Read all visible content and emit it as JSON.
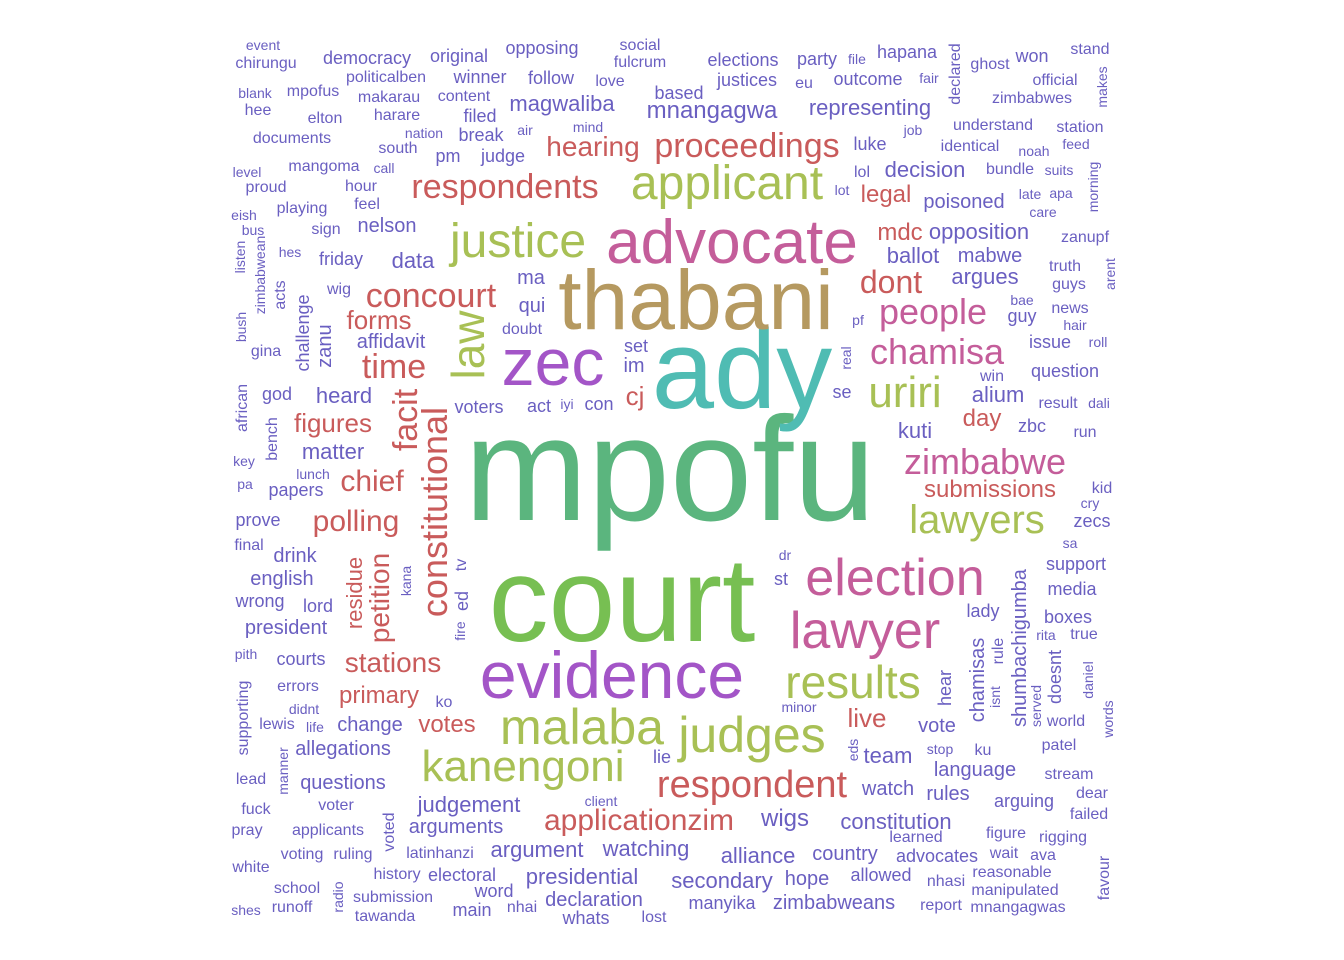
{
  "words": [
    {
      "text": "mpofu",
      "color": "#5bb57e"
    },
    {
      "text": "court",
      "color": "#77bf52"
    },
    {
      "text": "ady",
      "color": "#4fbcb3"
    },
    {
      "text": "thabani",
      "color": "#b59960"
    },
    {
      "text": "zec",
      "color": "#a355c7"
    },
    {
      "text": "advocate",
      "color": "#c45d9a"
    },
    {
      "text": "evidence",
      "color": "#a355c7"
    },
    {
      "text": "justice",
      "color": "#a8c055"
    },
    {
      "text": "applicant",
      "color": "#a8c055"
    },
    {
      "text": "malaba",
      "color": "#a8c055"
    },
    {
      "text": "judges",
      "color": "#a8c055"
    },
    {
      "text": "kanengoni",
      "color": "#a8c055"
    },
    {
      "text": "election",
      "color": "#c45d9a"
    },
    {
      "text": "lawyer",
      "color": "#c45d9a"
    },
    {
      "text": "results",
      "color": "#a8c055"
    },
    {
      "text": "uriri",
      "color": "#a8c055"
    },
    {
      "text": "lawyers",
      "color": "#a8c055"
    },
    {
      "text": "law",
      "color": "#a8c055"
    },
    {
      "text": "constitutional",
      "color": "#c95b5b"
    },
    {
      "text": "respondent",
      "color": "#c95b5b"
    },
    {
      "text": "zimbabwe",
      "color": "#c45d9a"
    },
    {
      "text": "chamisa",
      "color": "#c45d9a"
    },
    {
      "text": "people",
      "color": "#c45d9a"
    },
    {
      "text": "proceedings",
      "color": "#c95b5b"
    },
    {
      "text": "respondents",
      "color": "#c95b5b"
    },
    {
      "text": "concourt",
      "color": "#c95b5b"
    },
    {
      "text": "facit",
      "color": "#c95b5b"
    },
    {
      "text": "time",
      "color": "#c95b5b"
    },
    {
      "text": "dont",
      "color": "#c95b5b"
    },
    {
      "text": "applicationzim",
      "color": "#c95b5b"
    },
    {
      "text": "polling",
      "color": "#c95b5b"
    },
    {
      "text": "chief",
      "color": "#c95b5b"
    },
    {
      "text": "hearing",
      "color": "#c95b5b"
    },
    {
      "text": "stations",
      "color": "#c95b5b"
    },
    {
      "text": "petition",
      "color": "#c95b5b"
    },
    {
      "text": "submissions",
      "color": "#c95b5b"
    },
    {
      "text": "forms",
      "color": "#c95b5b"
    },
    {
      "text": "live",
      "color": "#c95b5b"
    },
    {
      "text": "figures",
      "color": "#c95b5b"
    },
    {
      "text": "primary",
      "color": "#c95b5b"
    },
    {
      "text": "votes",
      "color": "#c95b5b"
    },
    {
      "text": "day",
      "color": "#c95b5b"
    },
    {
      "text": "cj",
      "color": "#c95b5b"
    },
    {
      "text": "legal",
      "color": "#c95b5b"
    },
    {
      "text": "mdc",
      "color": "#c95b5b"
    },
    {
      "text": "residue",
      "color": "#c95b5b"
    },
    {
      "text": "mnangagwa",
      "color": "#6a5fc1"
    },
    {
      "text": "magwaliba",
      "color": "#6a5fc1"
    },
    {
      "text": "wigs",
      "color": "#6a5fc1"
    },
    {
      "text": "watching",
      "color": "#6a5fc1"
    },
    {
      "text": "alliance",
      "color": "#6a5fc1"
    },
    {
      "text": "secondary",
      "color": "#6a5fc1"
    },
    {
      "text": "presidential",
      "color": "#6a5fc1"
    },
    {
      "text": "argument",
      "color": "#6a5fc1"
    },
    {
      "text": "arguments",
      "color": "#6a5fc1"
    },
    {
      "text": "judgement",
      "color": "#6a5fc1"
    },
    {
      "text": "shumbachigumba",
      "color": "#6a5fc1"
    },
    {
      "text": "chamisas",
      "color": "#6a5fc1"
    },
    {
      "text": "opposition",
      "color": "#6a5fc1"
    },
    {
      "text": "ballot",
      "color": "#6a5fc1"
    },
    {
      "text": "argues",
      "color": "#6a5fc1"
    },
    {
      "text": "mabwe",
      "color": "#6a5fc1"
    },
    {
      "text": "representing",
      "color": "#6a5fc1"
    },
    {
      "text": "decision",
      "color": "#6a5fc1"
    },
    {
      "text": "poisoned",
      "color": "#6a5fc1"
    },
    {
      "text": "kuti",
      "color": "#6a5fc1"
    },
    {
      "text": "alium",
      "color": "#6a5fc1"
    },
    {
      "text": "heard",
      "color": "#6a5fc1"
    },
    {
      "text": "matter",
      "color": "#6a5fc1"
    },
    {
      "text": "data",
      "color": "#6a5fc1"
    },
    {
      "text": "nelson",
      "color": "#6a5fc1"
    },
    {
      "text": "affidavit",
      "color": "#6a5fc1"
    },
    {
      "text": "constitution",
      "color": "#6a5fc1"
    },
    {
      "text": "team",
      "color": "#6a5fc1"
    },
    {
      "text": "watch",
      "color": "#6a5fc1"
    },
    {
      "text": "language",
      "color": "#6a5fc1"
    },
    {
      "text": "rules",
      "color": "#6a5fc1"
    },
    {
      "text": "country",
      "color": "#6a5fc1"
    },
    {
      "text": "advocates",
      "color": "#6a5fc1"
    },
    {
      "text": "declaration",
      "color": "#6a5fc1"
    },
    {
      "text": "zimbabweans",
      "color": "#6a5fc1"
    },
    {
      "text": "manyika",
      "color": "#6a5fc1"
    },
    {
      "text": "hope",
      "color": "#6a5fc1"
    },
    {
      "text": "allowed",
      "color": "#6a5fc1"
    },
    {
      "text": "whats",
      "color": "#6a5fc1"
    },
    {
      "text": "lost",
      "color": "#6a5fc1"
    },
    {
      "text": "main",
      "color": "#6a5fc1"
    },
    {
      "text": "nhai",
      "color": "#6a5fc1"
    },
    {
      "text": "word",
      "color": "#6a5fc1"
    },
    {
      "text": "electoral",
      "color": "#6a5fc1"
    },
    {
      "text": "latinhanzi",
      "color": "#6a5fc1"
    },
    {
      "text": "history",
      "color": "#6a5fc1"
    },
    {
      "text": "submission",
      "color": "#6a5fc1"
    },
    {
      "text": "tawanda",
      "color": "#6a5fc1"
    },
    {
      "text": "radio",
      "color": "#6a5fc1"
    },
    {
      "text": "voted",
      "color": "#6a5fc1"
    },
    {
      "text": "ruling",
      "color": "#6a5fc1"
    },
    {
      "text": "voting",
      "color": "#6a5fc1"
    },
    {
      "text": "applicants",
      "color": "#6a5fc1"
    },
    {
      "text": "voter",
      "color": "#6a5fc1"
    },
    {
      "text": "questions",
      "color": "#6a5fc1"
    },
    {
      "text": "allegations",
      "color": "#6a5fc1"
    },
    {
      "text": "change",
      "color": "#6a5fc1"
    },
    {
      "text": "lewis",
      "color": "#6a5fc1"
    },
    {
      "text": "life",
      "color": "#6a5fc1"
    },
    {
      "text": "didnt",
      "color": "#6a5fc1"
    },
    {
      "text": "errors",
      "color": "#6a5fc1"
    },
    {
      "text": "courts",
      "color": "#6a5fc1"
    },
    {
      "text": "president",
      "color": "#6a5fc1"
    },
    {
      "text": "lord",
      "color": "#6a5fc1"
    },
    {
      "text": "wrong",
      "color": "#6a5fc1"
    },
    {
      "text": "english",
      "color": "#6a5fc1"
    },
    {
      "text": "drink",
      "color": "#6a5fc1"
    },
    {
      "text": "prove",
      "color": "#6a5fc1"
    },
    {
      "text": "papers",
      "color": "#6a5fc1"
    },
    {
      "text": "lunch",
      "color": "#6a5fc1"
    },
    {
      "text": "god",
      "color": "#6a5fc1"
    },
    {
      "text": "bench",
      "color": "#6a5fc1"
    },
    {
      "text": "zanu",
      "color": "#6a5fc1"
    },
    {
      "text": "challenge",
      "color": "#6a5fc1"
    },
    {
      "text": "acts",
      "color": "#6a5fc1"
    },
    {
      "text": "zimbabwean",
      "color": "#6a5fc1"
    },
    {
      "text": "gina",
      "color": "#6a5fc1"
    },
    {
      "text": "bush",
      "color": "#6a5fc1"
    },
    {
      "text": "listen",
      "color": "#6a5fc1"
    },
    {
      "text": "african",
      "color": "#6a5fc1"
    },
    {
      "text": "key",
      "color": "#6a5fc1"
    },
    {
      "text": "pa",
      "color": "#6a5fc1"
    },
    {
      "text": "final",
      "color": "#6a5fc1"
    },
    {
      "text": "pith",
      "color": "#6a5fc1"
    },
    {
      "text": "supporting",
      "color": "#6a5fc1"
    },
    {
      "text": "lead",
      "color": "#6a5fc1"
    },
    {
      "text": "fuck",
      "color": "#6a5fc1"
    },
    {
      "text": "pray",
      "color": "#6a5fc1"
    },
    {
      "text": "white",
      "color": "#6a5fc1"
    },
    {
      "text": "shes",
      "color": "#6a5fc1"
    },
    {
      "text": "runoff",
      "color": "#6a5fc1"
    },
    {
      "text": "school",
      "color": "#6a5fc1"
    },
    {
      "text": "manner",
      "color": "#6a5fc1"
    },
    {
      "text": "event",
      "color": "#6a5fc1"
    },
    {
      "text": "chirungu",
      "color": "#6a5fc1"
    },
    {
      "text": "democracy",
      "color": "#6a5fc1"
    },
    {
      "text": "original",
      "color": "#6a5fc1"
    },
    {
      "text": "opposing",
      "color": "#6a5fc1"
    },
    {
      "text": "social",
      "color": "#6a5fc1"
    },
    {
      "text": "fulcrum",
      "color": "#6a5fc1"
    },
    {
      "text": "elections",
      "color": "#6a5fc1"
    },
    {
      "text": "party",
      "color": "#6a5fc1"
    },
    {
      "text": "file",
      "color": "#6a5fc1"
    },
    {
      "text": "hapana",
      "color": "#6a5fc1"
    },
    {
      "text": "declared",
      "color": "#6a5fc1"
    },
    {
      "text": "ghost",
      "color": "#6a5fc1"
    },
    {
      "text": "won",
      "color": "#6a5fc1"
    },
    {
      "text": "stand",
      "color": "#6a5fc1"
    },
    {
      "text": "makes",
      "color": "#6a5fc1"
    },
    {
      "text": "official",
      "color": "#6a5fc1"
    },
    {
      "text": "fair",
      "color": "#6a5fc1"
    },
    {
      "text": "outcome",
      "color": "#6a5fc1"
    },
    {
      "text": "eu",
      "color": "#6a5fc1"
    },
    {
      "text": "justices",
      "color": "#6a5fc1"
    },
    {
      "text": "love",
      "color": "#6a5fc1"
    },
    {
      "text": "follow",
      "color": "#6a5fc1"
    },
    {
      "text": "winner",
      "color": "#6a5fc1"
    },
    {
      "text": "politicalben",
      "color": "#6a5fc1"
    },
    {
      "text": "blank",
      "color": "#6a5fc1"
    },
    {
      "text": "mpofus",
      "color": "#6a5fc1"
    },
    {
      "text": "makarau",
      "color": "#6a5fc1"
    },
    {
      "text": "content",
      "color": "#6a5fc1"
    },
    {
      "text": "based",
      "color": "#6a5fc1"
    },
    {
      "text": "zimbabwes",
      "color": "#6a5fc1"
    },
    {
      "text": "hee",
      "color": "#6a5fc1"
    },
    {
      "text": "elton",
      "color": "#6a5fc1"
    },
    {
      "text": "harare",
      "color": "#6a5fc1"
    },
    {
      "text": "filed",
      "color": "#6a5fc1"
    },
    {
      "text": "understand",
      "color": "#6a5fc1"
    },
    {
      "text": "station",
      "color": "#6a5fc1"
    },
    {
      "text": "documents",
      "color": "#6a5fc1"
    },
    {
      "text": "nation",
      "color": "#6a5fc1"
    },
    {
      "text": "break",
      "color": "#6a5fc1"
    },
    {
      "text": "air",
      "color": "#6a5fc1"
    },
    {
      "text": "mind",
      "color": "#6a5fc1"
    },
    {
      "text": "job",
      "color": "#6a5fc1"
    },
    {
      "text": "feed",
      "color": "#6a5fc1"
    },
    {
      "text": "luke",
      "color": "#6a5fc1"
    },
    {
      "text": "identical",
      "color": "#6a5fc1"
    },
    {
      "text": "noah",
      "color": "#6a5fc1"
    },
    {
      "text": "level",
      "color": "#6a5fc1"
    },
    {
      "text": "mangoma",
      "color": "#6a5fc1"
    },
    {
      "text": "south",
      "color": "#6a5fc1"
    },
    {
      "text": "call",
      "color": "#6a5fc1"
    },
    {
      "text": "pm",
      "color": "#6a5fc1"
    },
    {
      "text": "judge",
      "color": "#6a5fc1"
    },
    {
      "text": "morning",
      "color": "#6a5fc1"
    },
    {
      "text": "bundle",
      "color": "#6a5fc1"
    },
    {
      "text": "suits",
      "color": "#6a5fc1"
    },
    {
      "text": "proud",
      "color": "#6a5fc1"
    },
    {
      "text": "hour",
      "color": "#6a5fc1"
    },
    {
      "text": "lol",
      "color": "#6a5fc1"
    },
    {
      "text": "lot",
      "color": "#6a5fc1"
    },
    {
      "text": "late",
      "color": "#6a5fc1"
    },
    {
      "text": "apa",
      "color": "#6a5fc1"
    },
    {
      "text": "care",
      "color": "#6a5fc1"
    },
    {
      "text": "eish",
      "color": "#6a5fc1"
    },
    {
      "text": "playing",
      "color": "#6a5fc1"
    },
    {
      "text": "feel",
      "color": "#6a5fc1"
    },
    {
      "text": "bus",
      "color": "#6a5fc1"
    },
    {
      "text": "sign",
      "color": "#6a5fc1"
    },
    {
      "text": "hes",
      "color": "#6a5fc1"
    },
    {
      "text": "friday",
      "color": "#6a5fc1"
    },
    {
      "text": "zanupf",
      "color": "#6a5fc1"
    },
    {
      "text": "truth",
      "color": "#6a5fc1"
    },
    {
      "text": "arent",
      "color": "#6a5fc1"
    },
    {
      "text": "guys",
      "color": "#6a5fc1"
    },
    {
      "text": "wig",
      "color": "#6a5fc1"
    },
    {
      "text": "ma",
      "color": "#6a5fc1"
    },
    {
      "text": "qui",
      "color": "#6a5fc1"
    },
    {
      "text": "doubt",
      "color": "#6a5fc1"
    },
    {
      "text": "pf",
      "color": "#6a5fc1"
    },
    {
      "text": "guy",
      "color": "#6a5fc1"
    },
    {
      "text": "bae",
      "color": "#6a5fc1"
    },
    {
      "text": "news",
      "color": "#6a5fc1"
    },
    {
      "text": "hair",
      "color": "#6a5fc1"
    },
    {
      "text": "issue",
      "color": "#6a5fc1"
    },
    {
      "text": "roll",
      "color": "#6a5fc1"
    },
    {
      "text": "real",
      "color": "#6a5fc1"
    },
    {
      "text": "set",
      "color": "#6a5fc1"
    },
    {
      "text": "im",
      "color": "#6a5fc1"
    },
    {
      "text": "question",
      "color": "#6a5fc1"
    },
    {
      "text": "win",
      "color": "#6a5fc1"
    },
    {
      "text": "se",
      "color": "#6a5fc1"
    },
    {
      "text": "result",
      "color": "#6a5fc1"
    },
    {
      "text": "dali",
      "color": "#6a5fc1"
    },
    {
      "text": "voters",
      "color": "#6a5fc1"
    },
    {
      "text": "act",
      "color": "#6a5fc1"
    },
    {
      "text": "iyi",
      "color": "#6a5fc1"
    },
    {
      "text": "con",
      "color": "#6a5fc1"
    },
    {
      "text": "zbc",
      "color": "#6a5fc1"
    },
    {
      "text": "run",
      "color": "#6a5fc1"
    },
    {
      "text": "kid",
      "color": "#6a5fc1"
    },
    {
      "text": "cry",
      "color": "#6a5fc1"
    },
    {
      "text": "zecs",
      "color": "#6a5fc1"
    },
    {
      "text": "sa",
      "color": "#6a5fc1"
    },
    {
      "text": "support",
      "color": "#6a5fc1"
    },
    {
      "text": "media",
      "color": "#6a5fc1"
    },
    {
      "text": "boxes",
      "color": "#6a5fc1"
    },
    {
      "text": "rita",
      "color": "#6a5fc1"
    },
    {
      "text": "true",
      "color": "#6a5fc1"
    },
    {
      "text": "doesnt",
      "color": "#6a5fc1"
    },
    {
      "text": "daniel",
      "color": "#6a5fc1"
    },
    {
      "text": "rule",
      "color": "#6a5fc1"
    },
    {
      "text": "lady",
      "color": "#6a5fc1"
    },
    {
      "text": "isnt",
      "color": "#6a5fc1"
    },
    {
      "text": "served",
      "color": "#6a5fc1"
    },
    {
      "text": "world",
      "color": "#6a5fc1"
    },
    {
      "text": "words",
      "color": "#6a5fc1"
    },
    {
      "text": "patel",
      "color": "#6a5fc1"
    },
    {
      "text": "ku",
      "color": "#6a5fc1"
    },
    {
      "text": "stream",
      "color": "#6a5fc1"
    },
    {
      "text": "dear",
      "color": "#6a5fc1"
    },
    {
      "text": "failed",
      "color": "#6a5fc1"
    },
    {
      "text": "arguing",
      "color": "#6a5fc1"
    },
    {
      "text": "rigging",
      "color": "#6a5fc1"
    },
    {
      "text": "figure",
      "color": "#6a5fc1"
    },
    {
      "text": "wait",
      "color": "#6a5fc1"
    },
    {
      "text": "ava",
      "color": "#6a5fc1"
    },
    {
      "text": "favour",
      "color": "#6a5fc1"
    },
    {
      "text": "reasonable",
      "color": "#6a5fc1"
    },
    {
      "text": "manipulated",
      "color": "#6a5fc1"
    },
    {
      "text": "mnangagwas",
      "color": "#6a5fc1"
    },
    {
      "text": "report",
      "color": "#6a5fc1"
    },
    {
      "text": "nhasi",
      "color": "#6a5fc1"
    },
    {
      "text": "learned",
      "color": "#6a5fc1"
    },
    {
      "text": "hear",
      "color": "#6a5fc1"
    },
    {
      "text": "vote",
      "color": "#6a5fc1"
    },
    {
      "text": "stop",
      "color": "#6a5fc1"
    },
    {
      "text": "eds",
      "color": "#6a5fc1"
    },
    {
      "text": "lie",
      "color": "#6a5fc1"
    },
    {
      "text": "minor",
      "color": "#6a5fc1"
    },
    {
      "text": "ko",
      "color": "#6a5fc1"
    },
    {
      "text": "st",
      "color": "#6a5fc1"
    },
    {
      "text": "dr",
      "color": "#6a5fc1"
    },
    {
      "text": "tv",
      "color": "#6a5fc1"
    },
    {
      "text": "ed",
      "color": "#6a5fc1"
    },
    {
      "text": "kana",
      "color": "#6a5fc1"
    },
    {
      "text": "fire",
      "color": "#6a5fc1"
    },
    {
      "text": "client",
      "color": "#6a5fc1"
    }
  ]
}
